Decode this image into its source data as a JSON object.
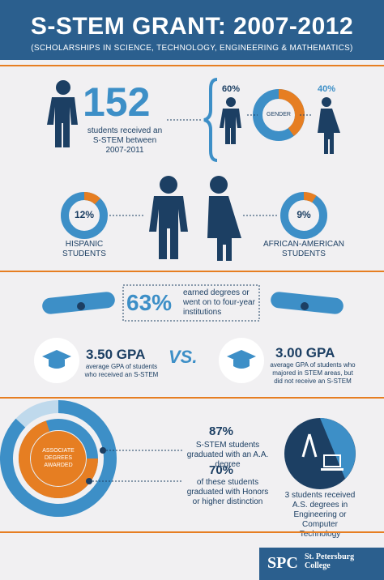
{
  "header": {
    "title": "S-STEM GRANT: 2007-2012",
    "subtitle": "(SCHOLARSHIPS IN SCIENCE, TECHNOLOGY, ENGINEERING & MATHEMATICS)"
  },
  "students": {
    "count": "152",
    "caption": "students received an S-STEM between 2007-2011"
  },
  "gender": {
    "label": "GENDER",
    "male_pct": "60%",
    "female_pct": "40%",
    "male_fraction": 0.6
  },
  "hispanic": {
    "pct": "12%",
    "fraction": 0.12,
    "label": "HISPANIC STUDENTS"
  },
  "african_american": {
    "pct": "9%",
    "fraction": 0.09,
    "label": "AFRICAN-AMERICAN STUDENTS"
  },
  "degrees": {
    "pct": "63%",
    "caption": "earned degrees or went on to four-year institutions"
  },
  "gpa": {
    "stem_value": "3.50 GPA",
    "stem_caption": "average GPA of students who received an S-STEM",
    "vs": "VS.",
    "other_value": "3.00 GPA",
    "other_caption": "average GPA of students who majored in STEM areas, but did not receive an S-STEM"
  },
  "associate": {
    "label": "ASSOCIATE DEGREES AWARDED",
    "stat1_pct": "87%",
    "stat1_caption": "S-STEM students graduated with an A.A. degree",
    "stat1_fraction": 0.87,
    "stat2_pct": "70%",
    "stat2_caption": "of these students graduated with Honors or higher distinction",
    "stat2_fraction": 0.7
  },
  "engineering": {
    "caption": "3 students received A.S. degrees in Engineering or Computer Technology"
  },
  "logo": {
    "mark": "SPC",
    "name": "St. Petersburg College"
  },
  "colors": {
    "navy": "#1c3f63",
    "blue": "#3d8fc7",
    "orange": "#e67e22",
    "background": "#f1f0f2"
  }
}
